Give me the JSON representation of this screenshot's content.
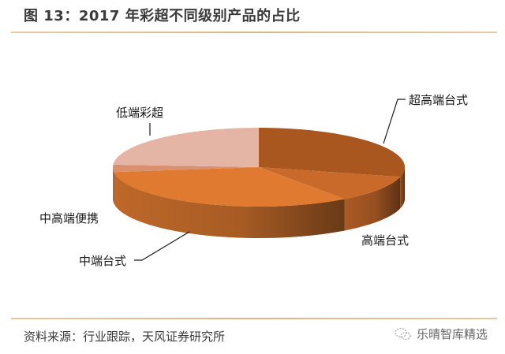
{
  "header": {
    "title": "图 13：2017 年彩超不同级别产品的占比"
  },
  "chart_data": {
    "type": "pie",
    "style": "3d",
    "title": "图 13：2017 年彩超不同级别产品的占比",
    "categories": [
      "超高端台式",
      "高端台式",
      "中端台式",
      "中高端便携",
      "低端彩超"
    ],
    "values": [
      29,
      11,
      33,
      3,
      24
    ],
    "unit": "%",
    "colors": [
      "#a9571f",
      "#c96a2a",
      "#e07a30",
      "#d9906e",
      "#e4b4a4"
    ],
    "labels_position": "outside with leader lines",
    "legend": "none"
  },
  "labels": {
    "ultra_high": "超高端台式",
    "high": "高端台式",
    "mid": "中端台式",
    "mid_high_portable": "中高端便携",
    "low": "低端彩超"
  },
  "footer": {
    "source": "资料来源：行业跟踪，天风证券研究所",
    "watermark": "乐晴智库精选",
    "watermark_icon": "wechat-icon"
  }
}
